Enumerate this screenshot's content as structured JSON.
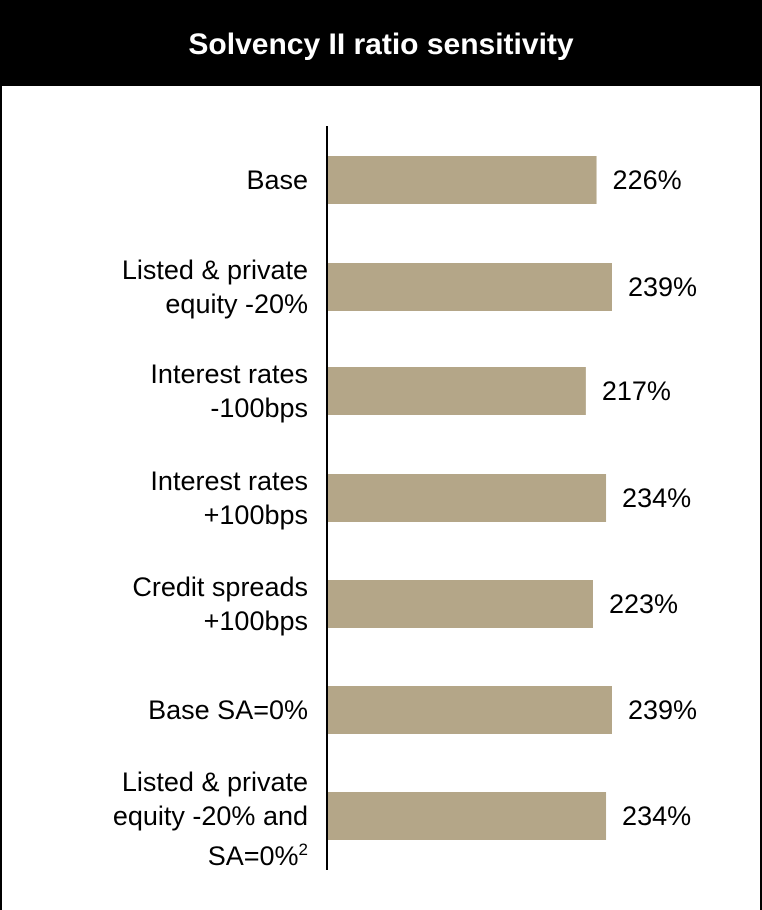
{
  "title": "Solvency II ratio sensitivity",
  "colors": {
    "bar": "#b4a688",
    "header_bg": "#000000",
    "axis": "#000000"
  },
  "chart_data": {
    "type": "bar",
    "orientation": "horizontal",
    "title": "Solvency II ratio sensitivity",
    "categories": [
      "Base",
      "Listed & private\nequity -20%",
      "Interest rates\n-100bps",
      "Interest rates\n+100bps",
      "Credit spreads\n+100bps",
      "Base SA=0%",
      "Listed & private\nequity -20% and\nSA=0%"
    ],
    "category_footnotes": [
      "",
      "",
      "",
      "",
      "",
      "",
      "2"
    ],
    "values": [
      226,
      239,
      217,
      234,
      223,
      239,
      234
    ],
    "data_labels": [
      "226%",
      "239%",
      "217%",
      "234%",
      "223%",
      "239%",
      "234%"
    ],
    "unit": "%",
    "xlim": [
      0,
      239
    ],
    "axis_ticks": false,
    "grid": false,
    "legend": false
  }
}
